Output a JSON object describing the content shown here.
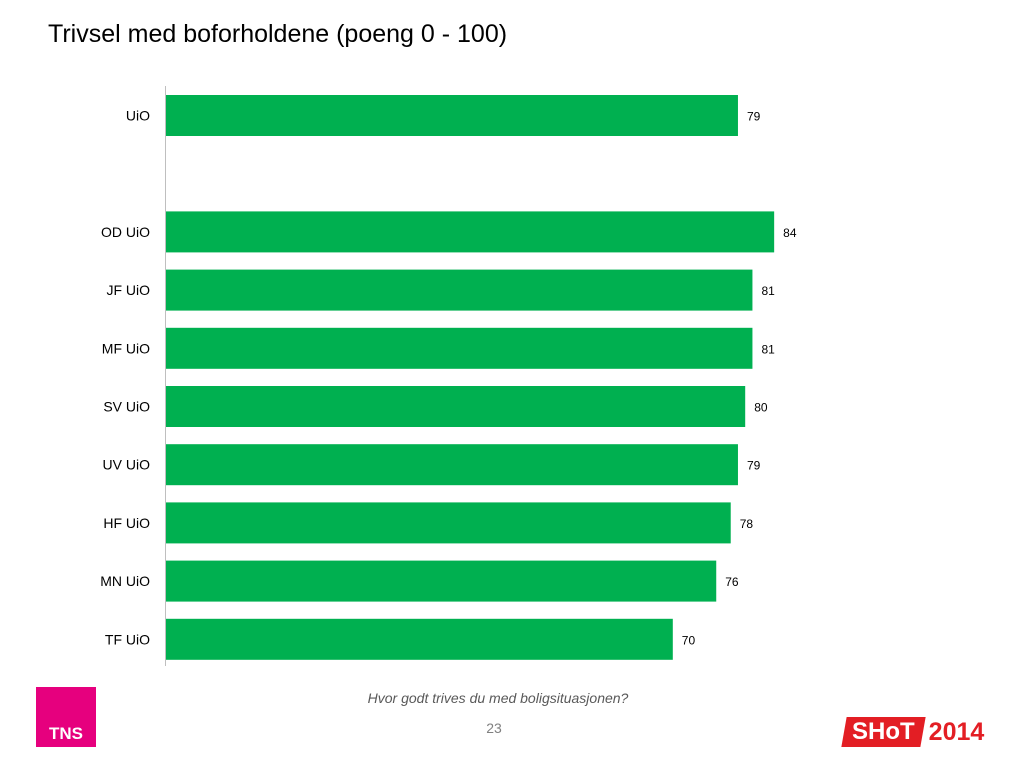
{
  "title": "Trivsel med boforholdene (poeng 0 - 100)",
  "chart_data": {
    "type": "bar",
    "orientation": "horizontal",
    "title": "Trivsel med boforholdene (poeng 0 - 100)",
    "xlim": [
      0,
      100
    ],
    "grid": false,
    "bar_color": "#00b050",
    "categories": [
      "UiO",
      "",
      "OD UiO",
      "JF UiO",
      "MF UiO",
      "SV UiO",
      "UV UiO",
      "HF UiO",
      "MN UiO",
      "TF UiO"
    ],
    "values": [
      79,
      null,
      84,
      81,
      81,
      80,
      79,
      78,
      76,
      70
    ]
  },
  "question": "Hvor godt trives du med boligsituasjonen?",
  "page_number": "23",
  "logos": {
    "tns": "TNS",
    "shot": "SHoT",
    "shot_year": "2014",
    "tns_color": "#e6007e",
    "shot_color": "#e31e24"
  }
}
